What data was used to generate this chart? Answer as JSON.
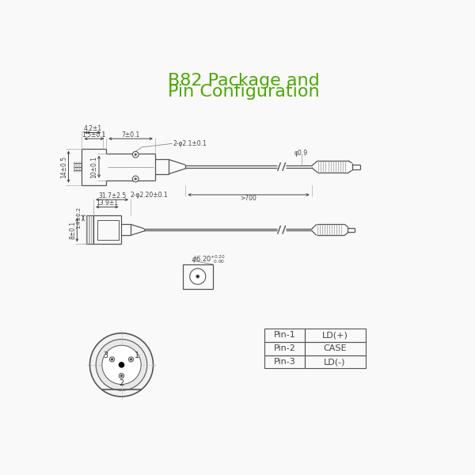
{
  "title_line1": "B82 Package and",
  "title_line2": "Pin Configuration",
  "title_color": "#4aaa00",
  "bg_color": "#f9f9f9",
  "line_color": "#555555",
  "dim_color": "#444444",
  "pin_table": {
    "pins": [
      "Pin-1",
      "Pin-2",
      "Pin-3"
    ],
    "functions": [
      "LD(+)",
      "CASE",
      "LD(-)"
    ]
  }
}
